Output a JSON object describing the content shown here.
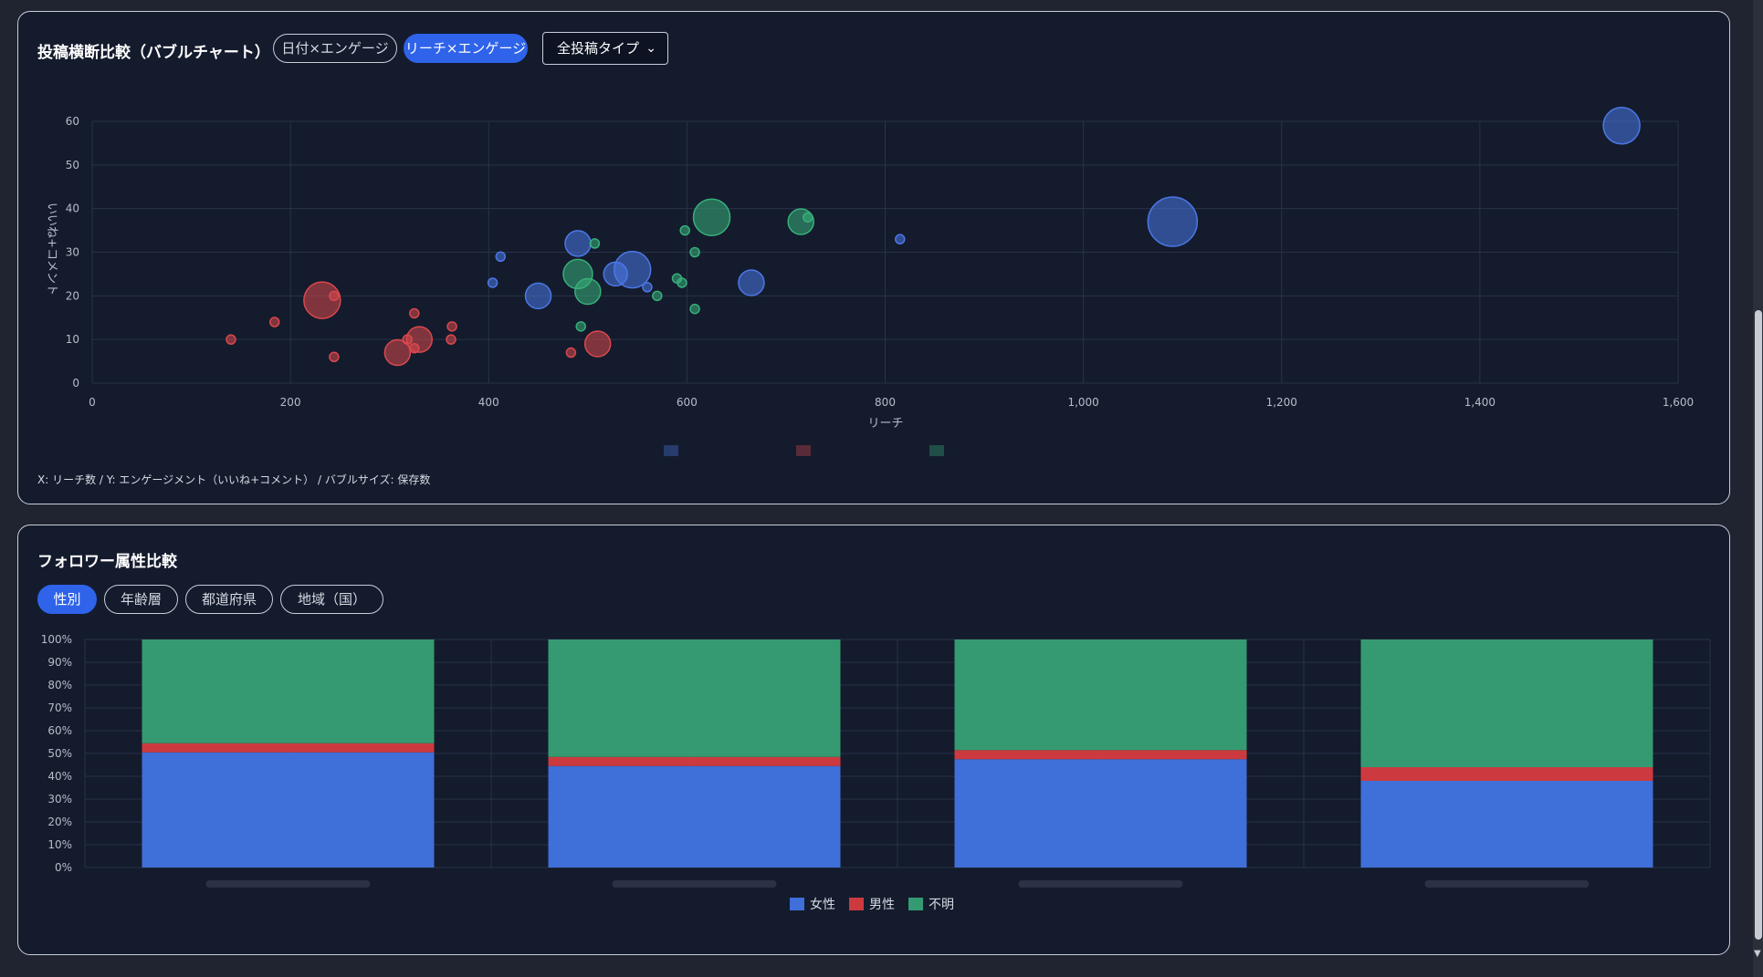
{
  "bubble_card": {
    "title": "投稿横断比較（バブルチャート）",
    "tabs": [
      {
        "label": "日付×エンゲージ",
        "active": false
      },
      {
        "label": "リーチ×エンゲージ",
        "active": true
      }
    ],
    "filter": {
      "value": "全投稿タイプ"
    },
    "footnote": "X: リーチ数 / Y: エンゲージメント（いいね+コメント） / バブルサイズ: 保存数"
  },
  "follower_card": {
    "title": "フォロワー属性比較",
    "tabs": [
      {
        "label": "性別",
        "active": true
      },
      {
        "label": "年齢層",
        "active": false
      },
      {
        "label": "都道府県",
        "active": false
      },
      {
        "label": "地域（国）",
        "active": false
      }
    ]
  },
  "chart_data": [
    {
      "type": "scatter",
      "xlabel": "リーチ",
      "ylabel": "いいね+コメント",
      "xlim": [
        0,
        1600
      ],
      "ylim": [
        0,
        60
      ],
      "xticks": [
        0,
        200,
        400,
        600,
        800,
        1000,
        1200,
        1400,
        1600
      ],
      "yticks": [
        0,
        10,
        20,
        30,
        40,
        50,
        60
      ],
      "grid": true,
      "legend_position": "bottom",
      "series": [
        {
          "color": "#4a78e6",
          "points": [
            {
              "x": 1543,
              "y": 59,
              "size": 20
            },
            {
              "x": 1090,
              "y": 37,
              "size": 27
            },
            {
              "x": 545,
              "y": 26,
              "size": 20
            },
            {
              "x": 490,
              "y": 32,
              "size": 14
            },
            {
              "x": 450,
              "y": 20,
              "size": 14
            },
            {
              "x": 665,
              "y": 23,
              "size": 14
            },
            {
              "x": 528,
              "y": 25,
              "size": 13
            },
            {
              "x": 412,
              "y": 29,
              "size": 5
            },
            {
              "x": 404,
              "y": 23,
              "size": 5
            },
            {
              "x": 815,
              "y": 33,
              "size": 5
            },
            {
              "x": 560,
              "y": 22,
              "size": 5
            }
          ]
        },
        {
          "color": "#d9484d",
          "points": [
            {
              "x": 232,
              "y": 19,
              "size": 20
            },
            {
              "x": 308,
              "y": 7,
              "size": 14
            },
            {
              "x": 330,
              "y": 10,
              "size": 14
            },
            {
              "x": 510,
              "y": 9,
              "size": 14
            },
            {
              "x": 140,
              "y": 10,
              "size": 5
            },
            {
              "x": 184,
              "y": 14,
              "size": 5
            },
            {
              "x": 244,
              "y": 20,
              "size": 5
            },
            {
              "x": 244,
              "y": 6,
              "size": 5
            },
            {
              "x": 318,
              "y": 10,
              "size": 5
            },
            {
              "x": 325,
              "y": 16,
              "size": 5
            },
            {
              "x": 325,
              "y": 8,
              "size": 5
            },
            {
              "x": 363,
              "y": 13,
              "size": 5
            },
            {
              "x": 362,
              "y": 10,
              "size": 5
            },
            {
              "x": 483,
              "y": 7,
              "size": 5
            }
          ]
        },
        {
          "color": "#36b07a",
          "points": [
            {
              "x": 625,
              "y": 38,
              "size": 20
            },
            {
              "x": 715,
              "y": 37,
              "size": 14
            },
            {
              "x": 490,
              "y": 25,
              "size": 16
            },
            {
              "x": 500,
              "y": 21,
              "size": 14
            },
            {
              "x": 722,
              "y": 38,
              "size": 5
            },
            {
              "x": 598,
              "y": 35,
              "size": 5
            },
            {
              "x": 608,
              "y": 30,
              "size": 5
            },
            {
              "x": 507,
              "y": 32,
              "size": 5
            },
            {
              "x": 590,
              "y": 24,
              "size": 5
            },
            {
              "x": 595,
              "y": 23,
              "size": 5
            },
            {
              "x": 570,
              "y": 20,
              "size": 5
            },
            {
              "x": 608,
              "y": 17,
              "size": 5
            },
            {
              "x": 493,
              "y": 13,
              "size": 5
            }
          ]
        }
      ]
    },
    {
      "type": "bar",
      "stacked": true,
      "ylim": [
        0,
        100
      ],
      "yticks": [
        "0%",
        "10%",
        "20%",
        "30%",
        "40%",
        "50%",
        "60%",
        "70%",
        "80%",
        "90%",
        "100%"
      ],
      "grid": true,
      "legend_position": "bottom",
      "series": [
        {
          "name": "女性",
          "color": "#3f6fd8",
          "values": [
            50.5,
            44.5,
            47.5,
            38
          ]
        },
        {
          "name": "男性",
          "color": "#cc3a3f",
          "values": [
            4,
            4,
            4,
            6
          ]
        },
        {
          "name": "不明",
          "color": "#359a71",
          "values": [
            45.5,
            51.5,
            48.5,
            56
          ]
        }
      ]
    }
  ]
}
